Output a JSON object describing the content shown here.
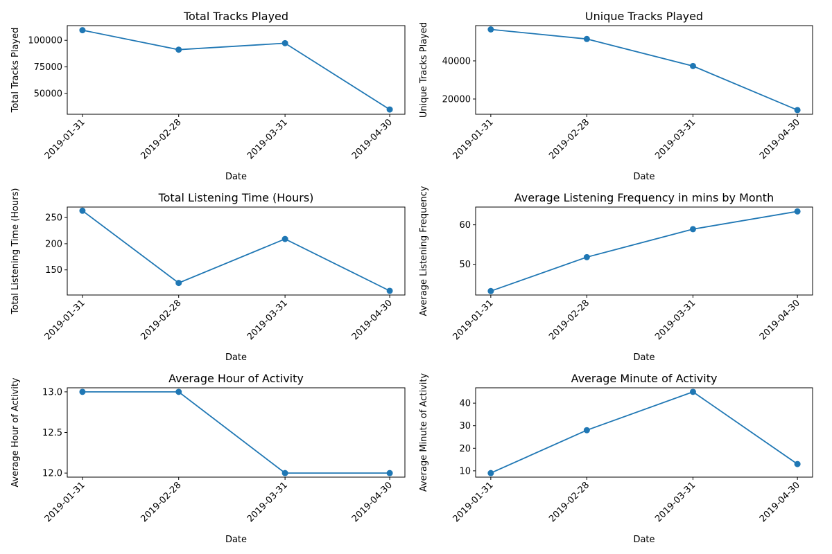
{
  "chart_data": [
    {
      "type": "line",
      "title": "Total Tracks Played",
      "xlabel": "Date",
      "ylabel": "Total Tracks Played",
      "x": [
        "2019-01-31",
        "2019-02-28",
        "2019-03-31",
        "2019-04-30"
      ],
      "series": [
        {
          "values": [
            109500,
            91200,
            97300,
            35000
          ]
        }
      ],
      "ylim": [
        30500,
        113800
      ],
      "yticks": [
        50000,
        75000,
        100000
      ],
      "color": "#1f77b4"
    },
    {
      "type": "line",
      "title": "Unique Tracks Played",
      "xlabel": "Date",
      "ylabel": "Unique Tracks Played",
      "x": [
        "2019-01-31",
        "2019-02-28",
        "2019-03-31",
        "2019-04-30"
      ],
      "series": [
        {
          "values": [
            56500,
            51500,
            37300,
            14200
          ]
        }
      ],
      "ylim": [
        12000,
        58500
      ],
      "yticks": [
        20000,
        40000
      ],
      "color": "#1f77b4"
    },
    {
      "type": "line",
      "title": "Total Listening Time (Hours)",
      "xlabel": "Date",
      "ylabel": "Total Listening Time (Hours)",
      "x": [
        "2019-01-31",
        "2019-02-28",
        "2019-03-31",
        "2019-04-30"
      ],
      "series": [
        {
          "values": [
            263,
            125,
            209,
            110
          ]
        }
      ],
      "ylim": [
        102,
        270
      ],
      "yticks": [
        150,
        200,
        250
      ],
      "color": "#1f77b4"
    },
    {
      "type": "line",
      "title": "Average Listening Frequency in mins by Month",
      "xlabel": "Date",
      "ylabel": "Average Listening Frequency",
      "x": [
        "2019-01-31",
        "2019-02-28",
        "2019-03-31",
        "2019-04-30"
      ],
      "series": [
        {
          "values": [
            43.2,
            51.8,
            58.9,
            63.4
          ]
        }
      ],
      "ylim": [
        42.2,
        64.5
      ],
      "yticks": [
        50,
        60
      ],
      "color": "#1f77b4"
    },
    {
      "type": "line",
      "title": "Average Hour of Activity",
      "xlabel": "Date",
      "ylabel": "Average Hour of Activity",
      "x": [
        "2019-01-31",
        "2019-02-28",
        "2019-03-31",
        "2019-04-30"
      ],
      "series": [
        {
          "values": [
            13.0,
            13.0,
            12.0,
            12.0
          ]
        }
      ],
      "ylim": [
        11.95,
        13.05
      ],
      "yticks": [
        12.0,
        12.5,
        13.0
      ],
      "yticklabels": [
        "12.0",
        "12.5",
        "13.0"
      ],
      "color": "#1f77b4"
    },
    {
      "type": "line",
      "title": "Average Minute of Activity",
      "xlabel": "Date",
      "ylabel": "Average Minute of Activity",
      "x": [
        "2019-01-31",
        "2019-02-28",
        "2019-03-31",
        "2019-04-30"
      ],
      "series": [
        {
          "values": [
            9,
            28,
            45,
            13
          ]
        }
      ],
      "ylim": [
        7.2,
        46.8
      ],
      "yticks": [
        10,
        20,
        30,
        40
      ],
      "color": "#1f77b4"
    }
  ]
}
